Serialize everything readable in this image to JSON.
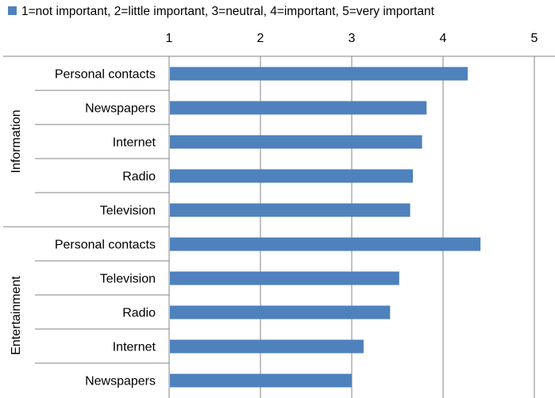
{
  "chart_data": {
    "type": "bar",
    "orientation": "horizontal",
    "title": "",
    "xlabel": "",
    "ylabel": "",
    "xlim": [
      1,
      5
    ],
    "x_ticks": [
      "1",
      "2",
      "3",
      "4",
      "5"
    ],
    "grid": true,
    "legend_position": "top",
    "color": "#4f81bd",
    "series": [
      {
        "name": "1=not important, 2=little important, 3=neutral, 4=important, 5=very important"
      }
    ],
    "groups": [
      {
        "name": "Information",
        "categories": [
          "Personal contacts",
          "Newspapers",
          "Internet",
          "Radio",
          "Television"
        ],
        "values": [
          4.27,
          3.82,
          3.77,
          3.67,
          3.64
        ]
      },
      {
        "name": "Entertainment",
        "categories": [
          "Personal contacts",
          "Television",
          "Radio",
          "Internet",
          "Newspapers"
        ],
        "values": [
          4.41,
          3.52,
          3.42,
          3.13,
          3.0
        ]
      }
    ]
  }
}
